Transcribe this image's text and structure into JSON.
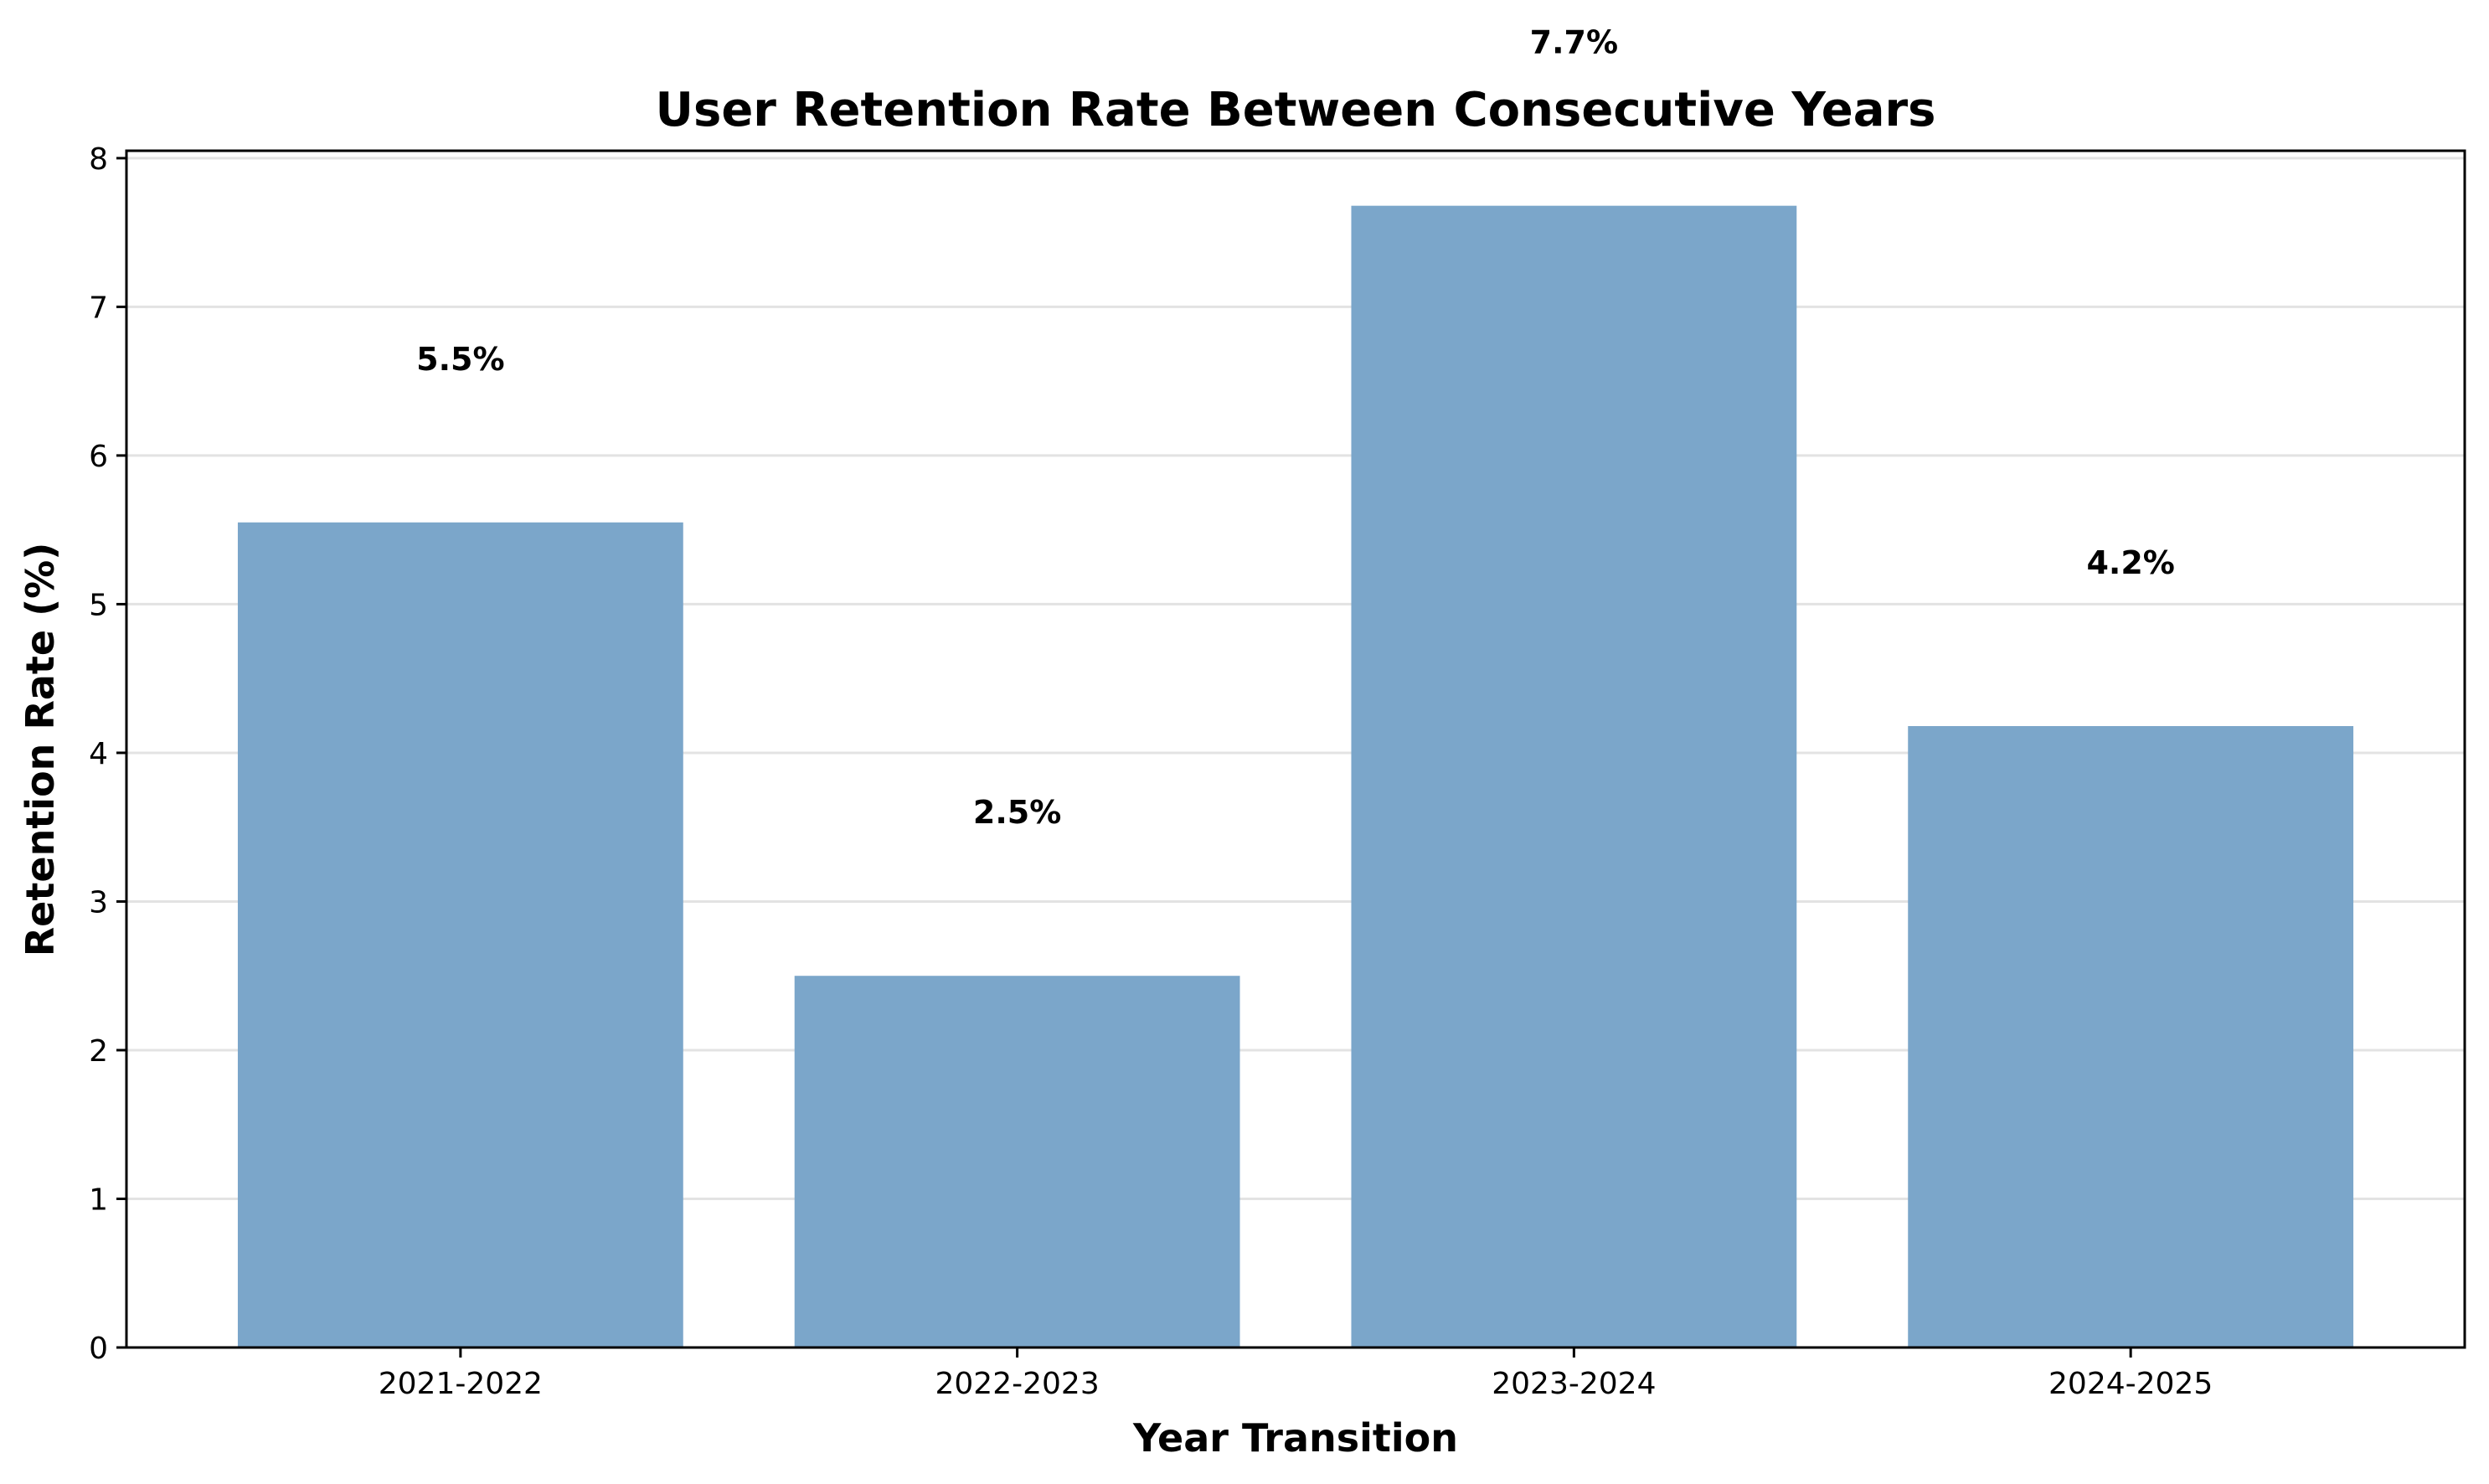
{
  "chart_data": {
    "type": "bar",
    "title": "User Retention Rate Between Consecutive Years",
    "xlabel": "Year Transition",
    "ylabel": "Retention Rate (%)",
    "categories": [
      "2021-2022",
      "2022-2023",
      "2023-2024",
      "2024-2025"
    ],
    "values": [
      5.55,
      2.5,
      7.68,
      4.18
    ],
    "data_labels": [
      "5.5%",
      "2.5%",
      "7.7%",
      "4.2%"
    ],
    "ylim": [
      0,
      8.05
    ],
    "yticks": [
      0,
      1,
      2,
      3,
      4,
      5,
      6,
      7,
      8
    ],
    "grid": "horizontal",
    "legend": "none",
    "colors": {
      "bar": "#7ba6ca",
      "grid": "#e3e3e3",
      "axis": "#000000"
    }
  }
}
